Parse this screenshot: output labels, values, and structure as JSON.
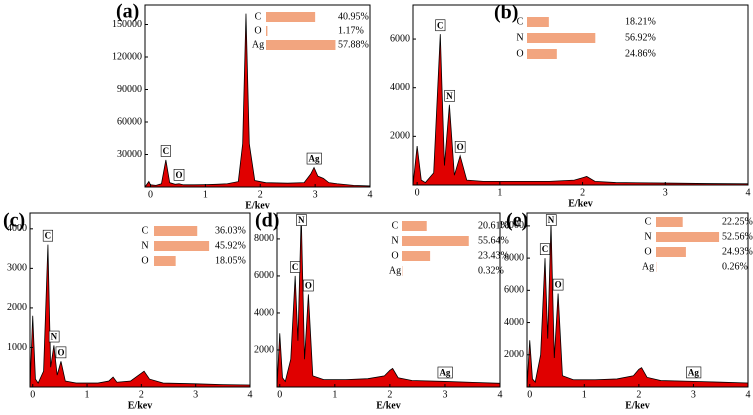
{
  "chart_data": [
    {
      "type": "area",
      "panel_label": "(a)",
      "x_label": "E/kev",
      "color": "#e00000",
      "x": [
        -0.1,
        -0.03,
        0.0,
        0.1,
        0.2,
        0.28,
        0.35,
        0.45,
        0.52,
        0.6,
        0.8,
        1.0,
        1.2,
        1.4,
        1.6,
        1.68,
        1.74,
        1.8,
        1.9,
        2.1,
        2.5,
        2.8,
        2.92,
        2.98,
        3.05,
        3.15,
        3.25,
        3.4,
        3.7,
        4.0
      ],
      "values": [
        0,
        5000,
        2000,
        1500,
        3000,
        25000,
        4000,
        2500,
        3000,
        2000,
        2000,
        2200,
        2500,
        3000,
        5000,
        40000,
        160000,
        40000,
        6000,
        4000,
        3500,
        4000,
        12000,
        18000,
        10000,
        8000,
        4000,
        3000,
        1500,
        1000
      ],
      "xlim": [
        -0.1,
        4
      ],
      "ylim": [
        0,
        168000
      ],
      "xticks": [
        0,
        1,
        2,
        3,
        4
      ],
      "yticks": [
        30000,
        60000,
        90000,
        120000,
        150000
      ],
      "annotations": [
        {
          "text": "C",
          "x": 0.28
        },
        {
          "text": "O",
          "x": 0.52
        },
        {
          "text": "Ag",
          "x": 2.98
        }
      ],
      "composition": {
        "categories": [
          "C",
          "O",
          "Ag"
        ],
        "values": [
          40.95,
          1.17,
          57.88
        ],
        "value_labels": [
          "40.95%",
          "1.17%",
          "57.88%"
        ],
        "color": "#f2a57f"
      }
    },
    {
      "type": "area",
      "panel_label": "(b)",
      "x_label": "E/kev",
      "color": "#e00000",
      "x": [
        -0.05,
        0.0,
        0.05,
        0.1,
        0.2,
        0.28,
        0.33,
        0.39,
        0.45,
        0.52,
        0.6,
        0.8,
        1.2,
        1.6,
        1.9,
        2.0,
        2.05,
        2.15,
        2.4,
        3.0,
        3.5,
        4.0
      ],
      "values": [
        0,
        1600,
        200,
        100,
        500,
        6200,
        800,
        3300,
        400,
        1200,
        200,
        150,
        150,
        150,
        200,
        300,
        350,
        150,
        100,
        80,
        60,
        50
      ],
      "xlim": [
        -0.05,
        4
      ],
      "ylim": [
        0,
        7400
      ],
      "xticks": [
        0,
        1,
        2,
        3,
        4
      ],
      "yticks": [
        2000,
        4000,
        6000
      ],
      "annotations": [
        {
          "text": "C",
          "x": 0.28
        },
        {
          "text": "N",
          "x": 0.39
        },
        {
          "text": "O",
          "x": 0.52
        }
      ],
      "composition": {
        "categories": [
          "C",
          "N",
          "O"
        ],
        "values": [
          18.21,
          56.92,
          24.86
        ],
        "value_labels": [
          "18.21%",
          "56.92%",
          "24.86%"
        ],
        "color": "#f2a57f"
      }
    },
    {
      "type": "area",
      "panel_label": "(c)",
      "x_label": "E/kev",
      "color": "#e00000",
      "x": [
        -0.05,
        0.0,
        0.05,
        0.1,
        0.2,
        0.28,
        0.33,
        0.39,
        0.45,
        0.52,
        0.6,
        0.8,
        1.2,
        1.4,
        1.48,
        1.55,
        1.8,
        2.0,
        2.05,
        2.15,
        2.4,
        3.0,
        3.5,
        4.0
      ],
      "values": [
        0,
        1800,
        200,
        100,
        400,
        3600,
        500,
        1050,
        300,
        650,
        150,
        100,
        100,
        150,
        250,
        120,
        150,
        350,
        400,
        200,
        100,
        80,
        60,
        50
      ],
      "xlim": [
        -0.05,
        4
      ],
      "ylim": [
        0,
        4400
      ],
      "xticks": [
        0,
        1,
        2,
        3,
        4
      ],
      "yticks": [
        1000,
        2000,
        3000,
        4000
      ],
      "annotations": [
        {
          "text": "C",
          "x": 0.28
        },
        {
          "text": "N",
          "x": 0.39
        },
        {
          "text": "O",
          "x": 0.52
        }
      ],
      "composition": {
        "categories": [
          "C",
          "N",
          "O"
        ],
        "values": [
          36.03,
          45.92,
          18.05
        ],
        "value_labels": [
          "36.03%",
          "45.92%",
          "18.05%"
        ],
        "color": "#f2a57f"
      }
    },
    {
      "type": "area",
      "panel_label": "(d)",
      "x_label": "E/kev",
      "color": "#e00000",
      "x": [
        -0.05,
        0.0,
        0.05,
        0.1,
        0.2,
        0.28,
        0.33,
        0.39,
        0.45,
        0.52,
        0.6,
        0.8,
        1.2,
        1.6,
        1.9,
        2.0,
        2.05,
        2.15,
        2.4,
        3.0,
        3.5,
        4.0
      ],
      "values": [
        0,
        2900,
        500,
        300,
        1500,
        6000,
        2500,
        9300,
        1500,
        5000,
        600,
        400,
        400,
        450,
        600,
        900,
        1000,
        500,
        350,
        300,
        250,
        200
      ],
      "xlim": [
        -0.05,
        4
      ],
      "ylim": [
        0,
        9400
      ],
      "xticks": [
        0,
        1,
        2,
        3,
        4
      ],
      "yticks": [
        2000,
        4000,
        6000,
        8000
      ],
      "annotations": [
        {
          "text": "C",
          "x": 0.28
        },
        {
          "text": "N",
          "x": 0.39
        },
        {
          "text": "O",
          "x": 0.52
        },
        {
          "text": "Ag",
          "x": 3.0
        }
      ],
      "composition": {
        "categories": [
          "C",
          "N",
          "O",
          "Ag"
        ],
        "values": [
          20.61,
          55.64,
          23.43,
          0.32
        ],
        "value_labels": [
          "20.61%",
          "55.64%",
          "23.43%",
          "0.32%"
        ],
        "color": "#f2a57f"
      }
    },
    {
      "type": "area",
      "panel_label": "(e)",
      "x_label": "E/kev",
      "color": "#e00000",
      "x": [
        -0.05,
        0.0,
        0.05,
        0.1,
        0.2,
        0.28,
        0.33,
        0.39,
        0.45,
        0.52,
        0.6,
        0.8,
        1.2,
        1.6,
        1.9,
        2.0,
        2.05,
        2.15,
        2.4,
        3.0,
        3.5,
        4.0
      ],
      "values": [
        0,
        2900,
        500,
        300,
        2000,
        8000,
        3000,
        10200,
        1800,
        5800,
        700,
        450,
        450,
        500,
        700,
        1100,
        1200,
        600,
        400,
        350,
        300,
        250
      ],
      "xlim": [
        -0.05,
        4
      ],
      "ylim": [
        0,
        10800
      ],
      "xticks": [
        0,
        1,
        2,
        3,
        4
      ],
      "yticks": [
        2000,
        4000,
        6000,
        8000,
        10000
      ],
      "annotations": [
        {
          "text": "C",
          "x": 0.28
        },
        {
          "text": "N",
          "x": 0.39
        },
        {
          "text": "O",
          "x": 0.52
        },
        {
          "text": "Ag",
          "x": 3.0
        }
      ],
      "composition": {
        "categories": [
          "C",
          "N",
          "O",
          "Ag"
        ],
        "values": [
          22.25,
          52.56,
          24.93,
          0.26
        ],
        "value_labels": [
          "22.25%",
          "52.56%",
          "24.93%",
          "0.26%"
        ],
        "color": "#f2a57f"
      }
    }
  ]
}
